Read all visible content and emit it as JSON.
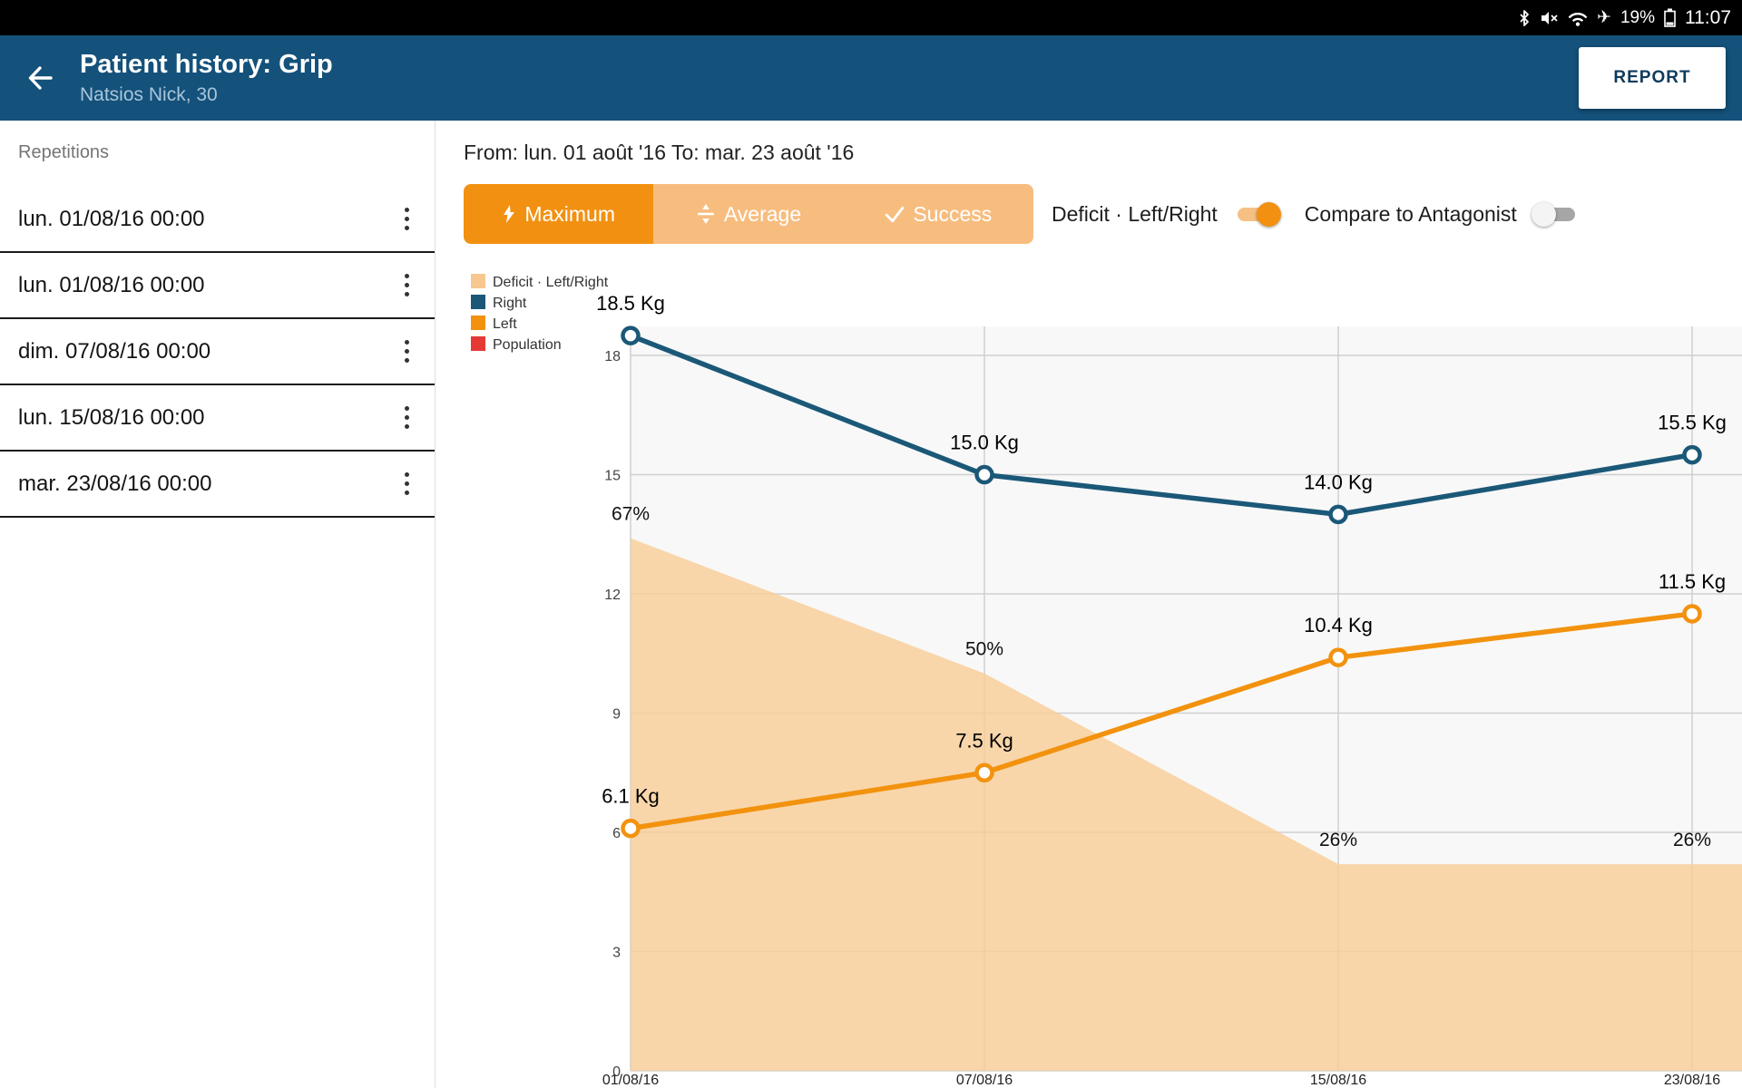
{
  "status_bar": {
    "battery": "19%",
    "time": "11:07"
  },
  "app_bar": {
    "title": "Patient history: Grip",
    "subtitle": "Natsios Nick, 30",
    "report": "REPORT"
  },
  "sidebar": {
    "header": "Repetitions",
    "items": [
      {
        "label": "lun. 01/08/16 00:00"
      },
      {
        "label": "lun. 01/08/16 00:00"
      },
      {
        "label": "dim. 07/08/16 00:00"
      },
      {
        "label": "lun. 15/08/16 00:00"
      },
      {
        "label": "mar. 23/08/16 00:00"
      }
    ]
  },
  "controls": {
    "date_range": "From: lun. 01 août '16 To: mar. 23 août '16",
    "segments": [
      {
        "label": "Maximum",
        "icon": "bolt-icon",
        "active": true
      },
      {
        "label": "Average",
        "icon": "average-icon",
        "active": false
      },
      {
        "label": "Success",
        "icon": "check-icon",
        "active": false
      }
    ],
    "toggles": [
      {
        "label": "Deficit · Left/Right",
        "on": true
      },
      {
        "label": "Compare to Antagonist",
        "on": false
      }
    ]
  },
  "chart_data": {
    "type": "line",
    "x": [
      "01/08/16",
      "07/08/16",
      "15/08/16",
      "23/08/16"
    ],
    "y_ticks": [
      0,
      3,
      6,
      9,
      12,
      15,
      18
    ],
    "ylim": [
      0,
      18.7
    ],
    "grid": true,
    "series": [
      {
        "name": "Right",
        "color": "#1b5878",
        "values": [
          18.5,
          15.0,
          14.0,
          15.5
        ],
        "labels": [
          "18.5 Kg",
          "15.0 Kg",
          "14.0 Kg",
          "15.5 Kg"
        ]
      },
      {
        "name": "Left",
        "color": "#f2920e",
        "values": [
          6.1,
          7.5,
          10.4,
          11.5
        ],
        "labels": [
          "6.1 Kg",
          "7.5 Kg",
          "10.4 Kg",
          "11.5 Kg"
        ]
      }
    ],
    "area": {
      "name": "Deficit · Left/Right",
      "color": "#f7cd96",
      "opacity": 0.8,
      "percent_values": [
        67,
        50,
        26,
        26
      ],
      "labels": [
        "67%",
        "50%",
        "26%",
        "26%"
      ],
      "pct_to_primary": 0.2
    },
    "legend": [
      {
        "label": "Deficit · Left/Right",
        "color": "#f6c88f"
      },
      {
        "label": "Right",
        "color": "#1b5878"
      },
      {
        "label": "Left",
        "color": "#f2920e"
      },
      {
        "label": "Population",
        "color": "#e53935"
      }
    ]
  },
  "colors": {
    "app_bar": "#14517b",
    "accent_orange": "#f29111",
    "segment_inactive": "#f7bd7f"
  }
}
